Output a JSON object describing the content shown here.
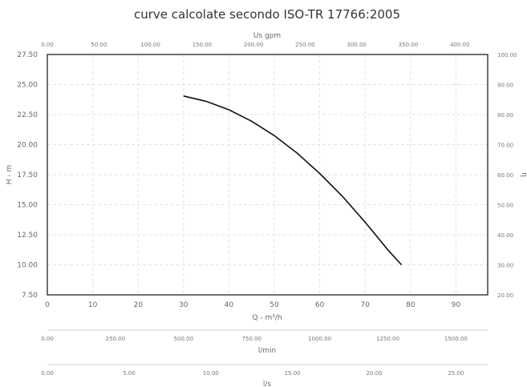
{
  "chart_data": {
    "type": "line",
    "title": "curve calcolate secondo ISO-TR 17766:2005",
    "xlabel": "Q - m³/h",
    "ylabel": "H - m",
    "y2label": "η",
    "xlim": [
      0,
      97
    ],
    "ylim": [
      7.5,
      27.5
    ],
    "x_ticks": [
      "0",
      "10",
      "20",
      "30",
      "40",
      "50",
      "60",
      "70",
      "80",
      "90"
    ],
    "y_ticks": [
      "7.50",
      "10.00",
      "12.50",
      "15.00",
      "17.50",
      "20.00",
      "22.50",
      "25.00",
      "27.50"
    ],
    "y2_ticks": [
      "20.00",
      "30.00",
      "40.00",
      "50.00",
      "60.00",
      "70.00",
      "80.00",
      "90.00",
      "100.00"
    ],
    "secondary_axes": [
      {
        "label": "Us gpm",
        "position": "top",
        "ticks": [
          "0.00",
          "50.00",
          "100.00",
          "150.00",
          "200.00",
          "250.00",
          "300.00",
          "350.00",
          "400.00"
        ]
      },
      {
        "label": "l/min",
        "position": "bottom",
        "ticks": [
          "0.00",
          "250.00",
          "500.00",
          "750.00",
          "1000.00",
          "1250.00",
          "1500.00"
        ]
      },
      {
        "label": "l/s",
        "position": "bottom",
        "ticks": [
          "0.00",
          "5.00",
          "10.00",
          "15.00",
          "20.00",
          "25.00"
        ]
      }
    ],
    "grid": true,
    "series": [
      {
        "x": [
          30,
          35,
          40,
          45,
          50,
          55,
          60,
          65,
          70,
          75,
          78
        ],
        "y": [
          24.05,
          23.6,
          22.9,
          21.95,
          20.75,
          19.3,
          17.6,
          15.7,
          13.55,
          11.25,
          10.0
        ]
      }
    ]
  }
}
